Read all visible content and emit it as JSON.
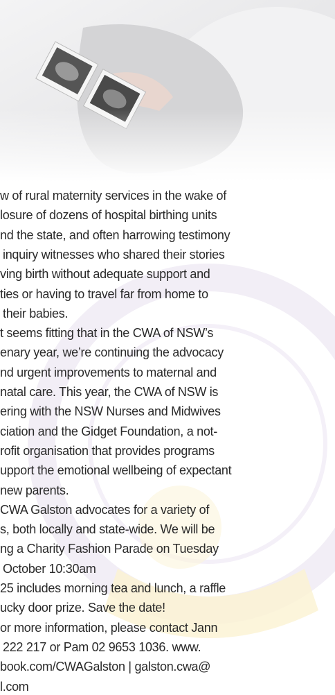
{
  "article": {
    "lines": [
      "w of rural maternity services in the wake of",
      "losure of dozens of hospital birthing units",
      "nd the state, and often harrowing testimony",
      "inquiry witnesses who shared their stories",
      "ving birth without adequate support and",
      "ties or having to travel far from home to",
      "their babies.",
      "t seems fitting that in the CWA of NSW’s",
      "enary year, we’re continuing the advocacy",
      "nd urgent improvements to maternal and",
      "natal care. This year, the CWA of NSW is",
      "ering with the NSW Nurses and Midwives",
      "ciation and the Gidget Foundation, a not-",
      "rofit organisation that provides programs",
      "upport the emotional wellbeing of expectant",
      "new parents.",
      "CWA Galston advocates for a variety of",
      "s, both locally and state-wide. We will be",
      "ng a Charity Fashion Parade on Tuesday",
      "October 10:30am",
      "25 includes morning tea and lunch, a raffle",
      "ucky door prize. Save the date!",
      "or more information, please contact Jann",
      "222 217 or Pam 02 9653 1036. www.",
      "book.com/CWAGalston | galston.cwa@",
      "l.com"
    ]
  }
}
